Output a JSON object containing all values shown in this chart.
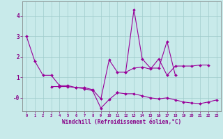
{
  "xlabel": "Windchill (Refroidissement éolien,°C)",
  "bg_color": "#c8eaea",
  "grid_color": "#a0cccc",
  "line_color": "#990099",
  "xlim": [
    -0.5,
    23.5
  ],
  "ylim": [
    -0.65,
    4.7
  ],
  "xticks": [
    0,
    1,
    2,
    3,
    4,
    5,
    6,
    7,
    8,
    9,
    10,
    11,
    12,
    13,
    14,
    15,
    16,
    17,
    18,
    19,
    20,
    21,
    22,
    23
  ],
  "yticks": [
    4,
    3,
    2,
    1,
    0
  ],
  "ytick_labels": [
    "4",
    "3",
    "2",
    "1",
    "-0"
  ],
  "series": [
    {
      "x": [
        0,
        1,
        2,
        3,
        4,
        5,
        6,
        7,
        8,
        9,
        10,
        11,
        12,
        13,
        14,
        15,
        16,
        17,
        18,
        19,
        20,
        21,
        22
      ],
      "y": [
        3.0,
        1.8,
        1.1,
        1.1,
        0.6,
        0.6,
        0.5,
        0.5,
        0.4,
        -0.05,
        1.85,
        1.25,
        1.25,
        1.45,
        1.5,
        1.4,
        1.9,
        1.1,
        1.55,
        1.55,
        1.55,
        1.6,
        1.6
      ]
    },
    {
      "x": [
        12,
        13,
        14,
        15,
        16,
        17,
        18
      ],
      "y": [
        1.25,
        4.3,
        1.9,
        1.45,
        1.45,
        2.75,
        1.1
      ]
    },
    {
      "x": [
        3,
        4,
        5,
        6,
        7,
        8,
        9,
        10,
        11
      ],
      "y": [
        0.55,
        0.55,
        0.55,
        0.5,
        0.45,
        0.35,
        -0.5,
        -0.08,
        0.25
      ]
    },
    {
      "x": [
        11,
        12,
        13,
        14,
        15,
        16,
        17,
        18,
        19,
        20,
        21,
        22,
        23
      ],
      "y": [
        0.25,
        0.2,
        0.2,
        0.1,
        0.0,
        -0.05,
        0.0,
        -0.1,
        -0.2,
        -0.25,
        -0.28,
        -0.2,
        -0.1
      ]
    }
  ]
}
